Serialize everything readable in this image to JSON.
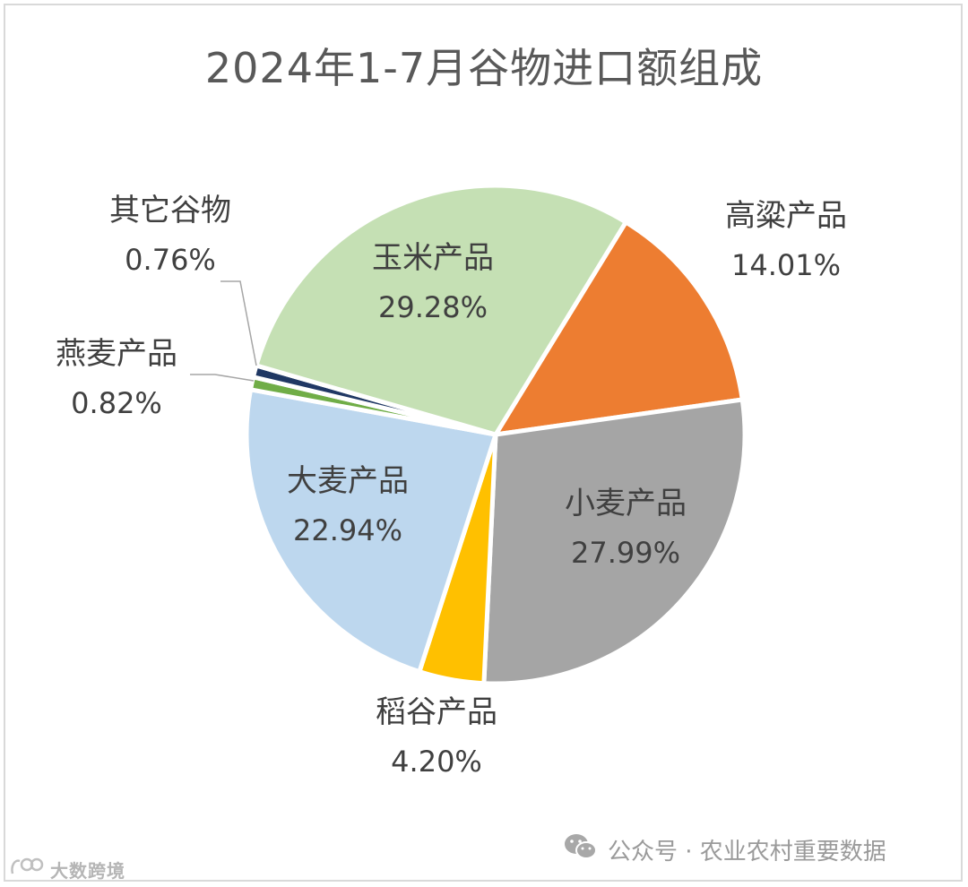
{
  "chart_data": {
    "type": "pie",
    "title": "2024年1-7月谷物进口额组成",
    "unit": "%",
    "slices": [
      {
        "label": "高粱产品",
        "value": 14.01,
        "color": "#ED7D31"
      },
      {
        "label": "小麦产品",
        "value": 27.99,
        "color": "#A5A5A5"
      },
      {
        "label": "稻谷产品",
        "value": 4.2,
        "color": "#FFC000"
      },
      {
        "label": "大麦产品",
        "value": 22.94,
        "color": "#BDD7EE"
      },
      {
        "label": "燕麦产品",
        "value": 0.82,
        "color": "#70AD47"
      },
      {
        "label": "其它谷物",
        "value": 0.76,
        "color": "#203864"
      },
      {
        "label": "玉米产品",
        "value": 29.28,
        "color": "#C5E0B4"
      }
    ],
    "value_labels": [
      "14.01%",
      "27.99%",
      "4.20%",
      "22.94%",
      "0.82%",
      "0.76%",
      "29.28%"
    ],
    "label_color": "#404040"
  },
  "watermarks": {
    "right": {
      "icon": "wechat-icon",
      "text": "公众号 · 农业农村重要数据"
    },
    "left": {
      "icon": "logo-icon",
      "text": "大数跨境"
    }
  }
}
